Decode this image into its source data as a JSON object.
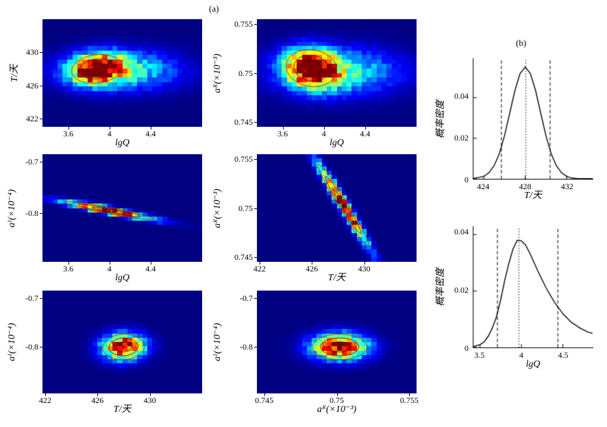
{
  "labels": {
    "a": "(a)",
    "b": "(b)"
  },
  "chart_data": [
    {
      "type": "heatmap",
      "id": "T-vs-lgQ",
      "colormap": "jet",
      "xlabel": "lgQ",
      "ylabel": "T/天",
      "xlim": [
        3.35,
        4.9
      ],
      "ylim": [
        421,
        434
      ],
      "xtick_vals": [
        3.6,
        4,
        4.4
      ],
      "xtick_labels": [
        "3.6",
        "4",
        "4.4"
      ],
      "ytick_vals": [
        422,
        426,
        430
      ],
      "ytick_labels": [
        "422",
        "426",
        "430"
      ],
      "grid": [
        32,
        24
      ],
      "components": [
        {
          "peak": [
            3.88,
            428.0
          ],
          "sigma": [
            0.17,
            1.2
          ],
          "rho": 0.15,
          "amp": 1
        },
        {
          "peak": [
            4.12,
            427.8
          ],
          "sigma": [
            0.38,
            1.6
          ],
          "rho": 0,
          "amp": 0.42
        }
      ]
    },
    {
      "type": "heatmap",
      "id": "aR-vs-lgQ",
      "colormap": "jet",
      "xlabel": "lgQ",
      "ylabel": "aᴿ(×10⁻³)",
      "xlim": [
        3.35,
        4.9
      ],
      "ylim": [
        0.7445,
        0.7555
      ],
      "xtick_vals": [
        3.6,
        4,
        4.4
      ],
      "xtick_labels": [
        "3.6",
        "4",
        "4.4"
      ],
      "ytick_vals": [
        0.745,
        0.75,
        0.755
      ],
      "ytick_labels": [
        "0.745",
        "0.75",
        "0.755"
      ],
      "grid": [
        32,
        24
      ],
      "components": [
        {
          "peak": [
            3.88,
            0.7505
          ],
          "sigma": [
            0.17,
            0.0013
          ],
          "rho": -0.1,
          "amp": 1
        },
        {
          "peak": [
            4.15,
            0.7501
          ],
          "sigma": [
            0.4,
            0.0016
          ],
          "rho": 0,
          "amp": 0.42
        }
      ]
    },
    {
      "type": "heatmap",
      "id": "aI-vs-lgQ",
      "colormap": "jet",
      "xlabel": "lgQ",
      "ylabel": "aᴵ(×10⁻⁴)",
      "xlim": [
        3.35,
        4.9
      ],
      "ylim": [
        -0.895,
        -0.685
      ],
      "xtick_vals": [
        3.6,
        4,
        4.4
      ],
      "xtick_labels": [
        "3.6",
        "4",
        "4.4"
      ],
      "ytick_vals": [
        -0.7,
        -0.8
      ],
      "ytick_labels": [
        "-0.7",
        "-0.8"
      ],
      "grid": [
        32,
        26
      ],
      "components": [
        {
          "peak": [
            4.0,
            -0.795
          ],
          "sigma": [
            0.3,
            0.012
          ],
          "rho": -0.925,
          "amp": 1
        }
      ]
    },
    {
      "type": "heatmap",
      "id": "aR-vs-T",
      "colormap": "jet",
      "xlabel": "T/天",
      "ylabel": "aᴿ(×10⁻³)",
      "xlim": [
        421.8,
        434
      ],
      "ylim": [
        0.7445,
        0.7555
      ],
      "xtick_vals": [
        422,
        426,
        430
      ],
      "xtick_labels": [
        "422",
        "426",
        "430"
      ],
      "ytick_vals": [
        0.745,
        0.75,
        0.755
      ],
      "ytick_labels": [
        "0.745",
        "0.75",
        "0.755"
      ],
      "grid": [
        32,
        26
      ],
      "components": [
        {
          "peak": [
            428.4,
            0.7503
          ],
          "sigma": [
            1.35,
            0.0029
          ],
          "rho": -0.975,
          "amp": 1
        }
      ]
    },
    {
      "type": "heatmap",
      "id": "aI-vs-T",
      "colormap": "jet",
      "xlabel": "T/天",
      "ylabel": "aᴵ(×10⁻⁴)",
      "xlim": [
        421.8,
        434
      ],
      "ylim": [
        -0.895,
        -0.685
      ],
      "xtick_vals": [
        422,
        426,
        430
      ],
      "xtick_labels": [
        "422",
        "426",
        "430"
      ],
      "ytick_vals": [
        -0.7,
        -0.8
      ],
      "ytick_labels": [
        "-0.7",
        "-0.8"
      ],
      "grid": [
        32,
        24
      ],
      "components": [
        {
          "peak": [
            428.0,
            -0.8
          ],
          "sigma": [
            1.1,
            0.018
          ],
          "rho": 0.05,
          "amp": 1
        }
      ]
    },
    {
      "type": "heatmap",
      "id": "aI-vs-aR",
      "colormap": "jet",
      "xlabel": "aᴿ(×10⁻³)",
      "ylabel": "aᴵ(×10⁻⁴)",
      "xlim": [
        0.7445,
        0.7555
      ],
      "ylim": [
        -0.895,
        -0.685
      ],
      "xtick_vals": [
        0.745,
        0.75,
        0.755
      ],
      "xtick_labels": [
        "0.745",
        "0.75",
        "0.755"
      ],
      "ytick_vals": [
        -0.7,
        -0.8
      ],
      "ytick_labels": [
        "-0.7",
        "-0.8"
      ],
      "grid": [
        32,
        24
      ],
      "components": [
        {
          "peak": [
            0.7502,
            -0.8
          ],
          "sigma": [
            0.0013,
            0.018
          ],
          "rho": 0,
          "amp": 1
        }
      ]
    },
    {
      "type": "line",
      "id": "pdf-T",
      "line_color": "#000000",
      "xlabel": "T/天",
      "ylabel": "概率密度",
      "xlim": [
        423,
        434.5
      ],
      "ylim": [
        0,
        0.058
      ],
      "xtick_vals": [
        424,
        428,
        432
      ],
      "xtick_labels": [
        "424",
        "428",
        "432"
      ],
      "ytick_vals": [
        0,
        0.02,
        0.04
      ],
      "ytick_labels": [
        "0",
        "0.02",
        "0.04"
      ],
      "x": [
        423,
        424,
        424.5,
        425,
        425.5,
        426,
        426.5,
        427,
        427.5,
        428,
        428.5,
        429,
        429.5,
        430,
        430.5,
        431,
        431.5,
        432,
        432.5,
        433,
        433.5,
        434.5
      ],
      "y": [
        0.0002,
        0.0012,
        0.003,
        0.0065,
        0.0124,
        0.0212,
        0.0322,
        0.0434,
        0.0518,
        0.055,
        0.0518,
        0.0434,
        0.0322,
        0.0212,
        0.0124,
        0.0065,
        0.003,
        0.0012,
        0.0004,
        0.0002,
        0.0001,
        0.0001
      ],
      "dashed_lines": [
        425.7,
        430.4
      ],
      "dotted_line": 428.05
    },
    {
      "type": "line",
      "id": "pdf-lgQ",
      "line_color": "#000000",
      "xlabel": "lgQ",
      "ylabel": "概率密度",
      "xlim": [
        3.42,
        4.86
      ],
      "ylim": [
        0,
        0.042
      ],
      "xtick_vals": [
        3.5,
        4,
        4.5
      ],
      "xtick_labels": [
        "3.5",
        "4",
        "4.5"
      ],
      "ytick_vals": [
        0,
        0.02,
        0.04
      ],
      "ytick_labels": [
        "0",
        "0.02",
        "0.04"
      ],
      "x": [
        3.42,
        3.5,
        3.55,
        3.6,
        3.65,
        3.7,
        3.75,
        3.8,
        3.85,
        3.9,
        3.95,
        4.0,
        4.05,
        4.1,
        4.2,
        4.3,
        4.4,
        4.5,
        4.6,
        4.7,
        4.8,
        4.86
      ],
      "y": [
        0.0003,
        0.001,
        0.002,
        0.004,
        0.007,
        0.011,
        0.017,
        0.024,
        0.03,
        0.035,
        0.038,
        0.0378,
        0.0363,
        0.0335,
        0.027,
        0.021,
        0.016,
        0.012,
        0.009,
        0.007,
        0.0055,
        0.005
      ],
      "dashed_lines": [
        3.71,
        4.44
      ],
      "dotted_line": 3.97
    }
  ]
}
